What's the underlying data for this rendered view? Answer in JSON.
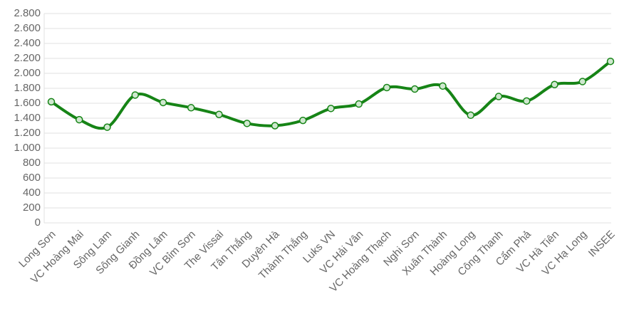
{
  "chart_data": {
    "type": "line",
    "categories": [
      "Long Sơn",
      "VC Hoàng Mai",
      "Sông Lam",
      "Sông Gianh",
      "Đồng Lâm",
      "VC Bỉm Sơn",
      "The Vissai",
      "Tân Thắng",
      "Duyên Hà",
      "Thành Thắng",
      "Luks VN",
      "VC Hải Vân",
      "VC Hoàng Thạch",
      "Nghi Sơn",
      "Xuân Thành",
      "Hoàng Long",
      "Công Thanh",
      "Cẩm Phả",
      "VC Hà Tiên",
      "VC Hạ Long",
      "INSEE"
    ],
    "series": [
      {
        "color": "#168416",
        "values": [
          1620,
          1380,
          1280,
          1710,
          1610,
          1540,
          1450,
          1330,
          1300,
          1370,
          1530,
          1590,
          1810,
          1790,
          1830,
          1440,
          1690,
          1630,
          1850,
          1890,
          2160
        ]
      }
    ],
    "ylim": [
      0,
      2800
    ],
    "yticks": [
      0,
      200,
      400,
      600,
      800,
      {
        "value": 1000,
        "label": "1.000"
      },
      {
        "value": 1200,
        "label": "1.200"
      },
      {
        "value": 1400,
        "label": "1.400"
      },
      {
        "value": 1600,
        "label": "1.600"
      },
      {
        "value": 1800,
        "label": "1.800"
      },
      {
        "value": 2000,
        "label": "2.000"
      },
      {
        "value": 2200,
        "label": "2.200"
      },
      {
        "value": 2400,
        "label": "2.400"
      },
      {
        "value": 2600,
        "label": "2.600"
      },
      {
        "value": 2800,
        "label": "2.800"
      }
    ],
    "grid": true
  }
}
